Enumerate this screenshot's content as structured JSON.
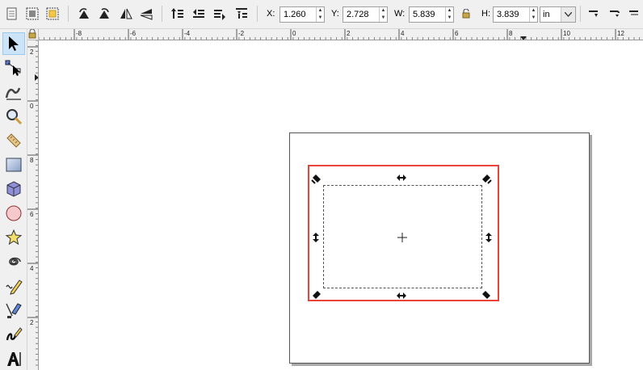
{
  "tool_controls": {
    "x_label": "X:",
    "x_value": "1.260",
    "y_label": "Y:",
    "y_value": "2.728",
    "w_label": "W:",
    "w_value": "5.839",
    "h_label": "H:",
    "h_value": "3.839",
    "unit": "in"
  },
  "rulers": {
    "horizontal_labels": [
      "-8",
      "-6",
      "-4",
      "-2",
      "0",
      "2",
      "4",
      "6",
      "8",
      "10",
      "12"
    ],
    "vertical_labels": [
      "2",
      "0",
      "8",
      "6",
      "4",
      "2"
    ]
  },
  "toolbox": {
    "active_tool": "selector",
    "tools": [
      "selector",
      "node",
      "tweak",
      "zoom",
      "measure",
      "rectangle",
      "3d-box",
      "ellipse",
      "star",
      "spiral",
      "pencil",
      "pen",
      "calligraphy",
      "text"
    ]
  },
  "colors": {
    "selection_outline": "#e8443a",
    "toolbar_bg": "#f0f0f0"
  }
}
